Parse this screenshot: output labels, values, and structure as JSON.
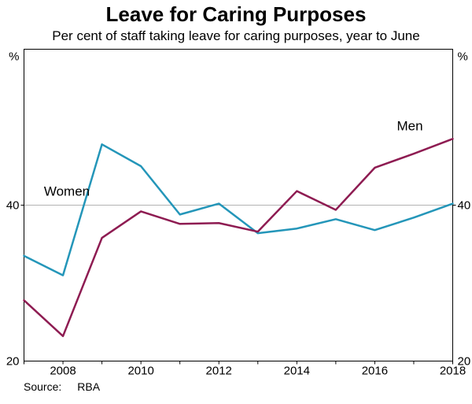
{
  "header": {
    "title": "Leave for Caring Purposes",
    "subtitle": "Per cent of staff taking leave for caring purposes, year to June"
  },
  "source": {
    "label": "Source:",
    "value": "RBA"
  },
  "chart_data": {
    "type": "line",
    "title": "Leave for Caring Purposes",
    "subtitle": "Per cent of staff taking leave for caring purposes, year to June",
    "unit": "%",
    "x": [
      2007,
      2008,
      2009,
      2010,
      2011,
      2012,
      2013,
      2014,
      2015,
      2016,
      2017,
      2018
    ],
    "xlim": [
      2007,
      2018
    ],
    "ylim": [
      20,
      60
    ],
    "yticks": [
      20,
      40
    ],
    "gridlines": [
      40
    ],
    "xtick_labels": [
      "2008",
      "2010",
      "2012",
      "2014",
      "2016",
      "2018"
    ],
    "series": [
      {
        "name": "Women",
        "color": "#2496b9",
        "values": [
          33.5,
          31.0,
          47.8,
          45.0,
          38.8,
          40.2,
          36.4,
          37.0,
          38.2,
          36.8,
          38.4,
          40.2
        ],
        "label_pos": {
          "x": 2008.1,
          "y": 41.8
        }
      },
      {
        "name": "Men",
        "color": "#8e1c52",
        "values": [
          27.8,
          23.2,
          35.8,
          39.2,
          37.6,
          37.7,
          36.6,
          41.8,
          39.4,
          44.8,
          46.6,
          48.5
        ],
        "label_pos": {
          "x": 2016.9,
          "y": 50.2
        }
      }
    ],
    "legend": "inline-labels",
    "grid_color": "#b3b3b3",
    "frame_color": "#000000",
    "source": "RBA"
  }
}
